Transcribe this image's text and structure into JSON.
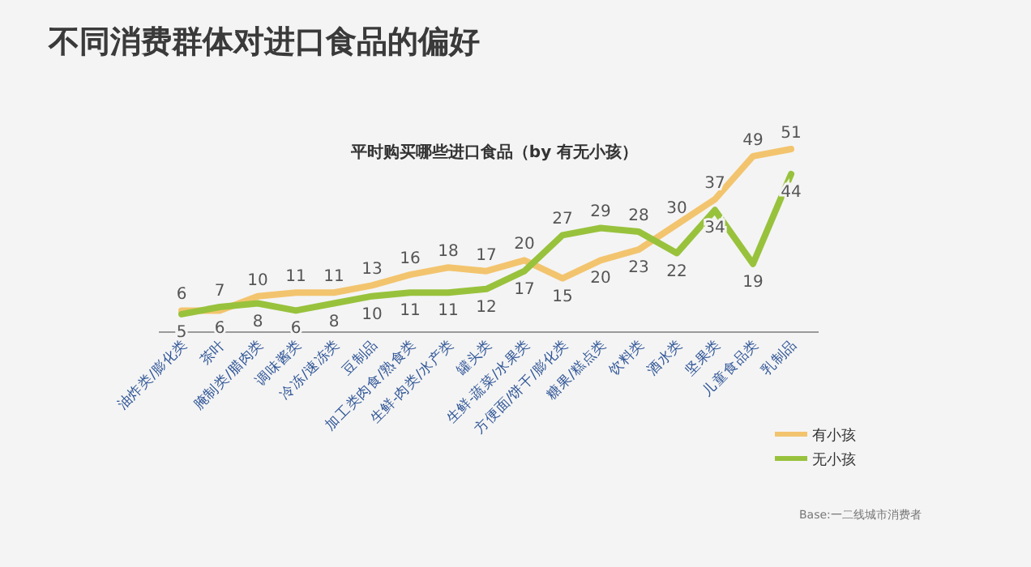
{
  "chart_data": {
    "type": "line",
    "title": "不同消费群体对进口食品的偏好",
    "subtitle": "平时购买哪些进口食品（by 有无小孩）",
    "categories": [
      "油炸类/膨化类",
      "茶叶",
      "腌制类/腊肉类",
      "调味酱类",
      "冷冻/速冻类",
      "豆制品",
      "加工类肉食/熟食类",
      "生鲜-肉类/水产类",
      "罐头类",
      "生鲜-蔬菜/水果类",
      "方便面/饼干/膨化类",
      "糖果/糕点类",
      "饮料类",
      "酒水类",
      "坚果类",
      "儿童食品类",
      "乳制品"
    ],
    "series": [
      {
        "name": "有小孩",
        "color": "#f3c46e",
        "values": [
          6,
          6,
          10,
          11,
          11,
          13,
          16,
          18,
          17,
          20,
          15,
          20,
          23,
          30,
          37,
          49,
          51
        ]
      },
      {
        "name": "无小孩",
        "color": "#98c23c",
        "values": [
          5,
          7,
          8,
          6,
          8,
          10,
          11,
          11,
          12,
          17,
          27,
          29,
          28,
          22,
          34,
          19,
          44
        ]
      }
    ],
    "data_labels": true,
    "legend": "bottom right",
    "line_style": "solid",
    "marker": "none",
    "annotations": [
      "Base:一二线城市消费者"
    ]
  }
}
